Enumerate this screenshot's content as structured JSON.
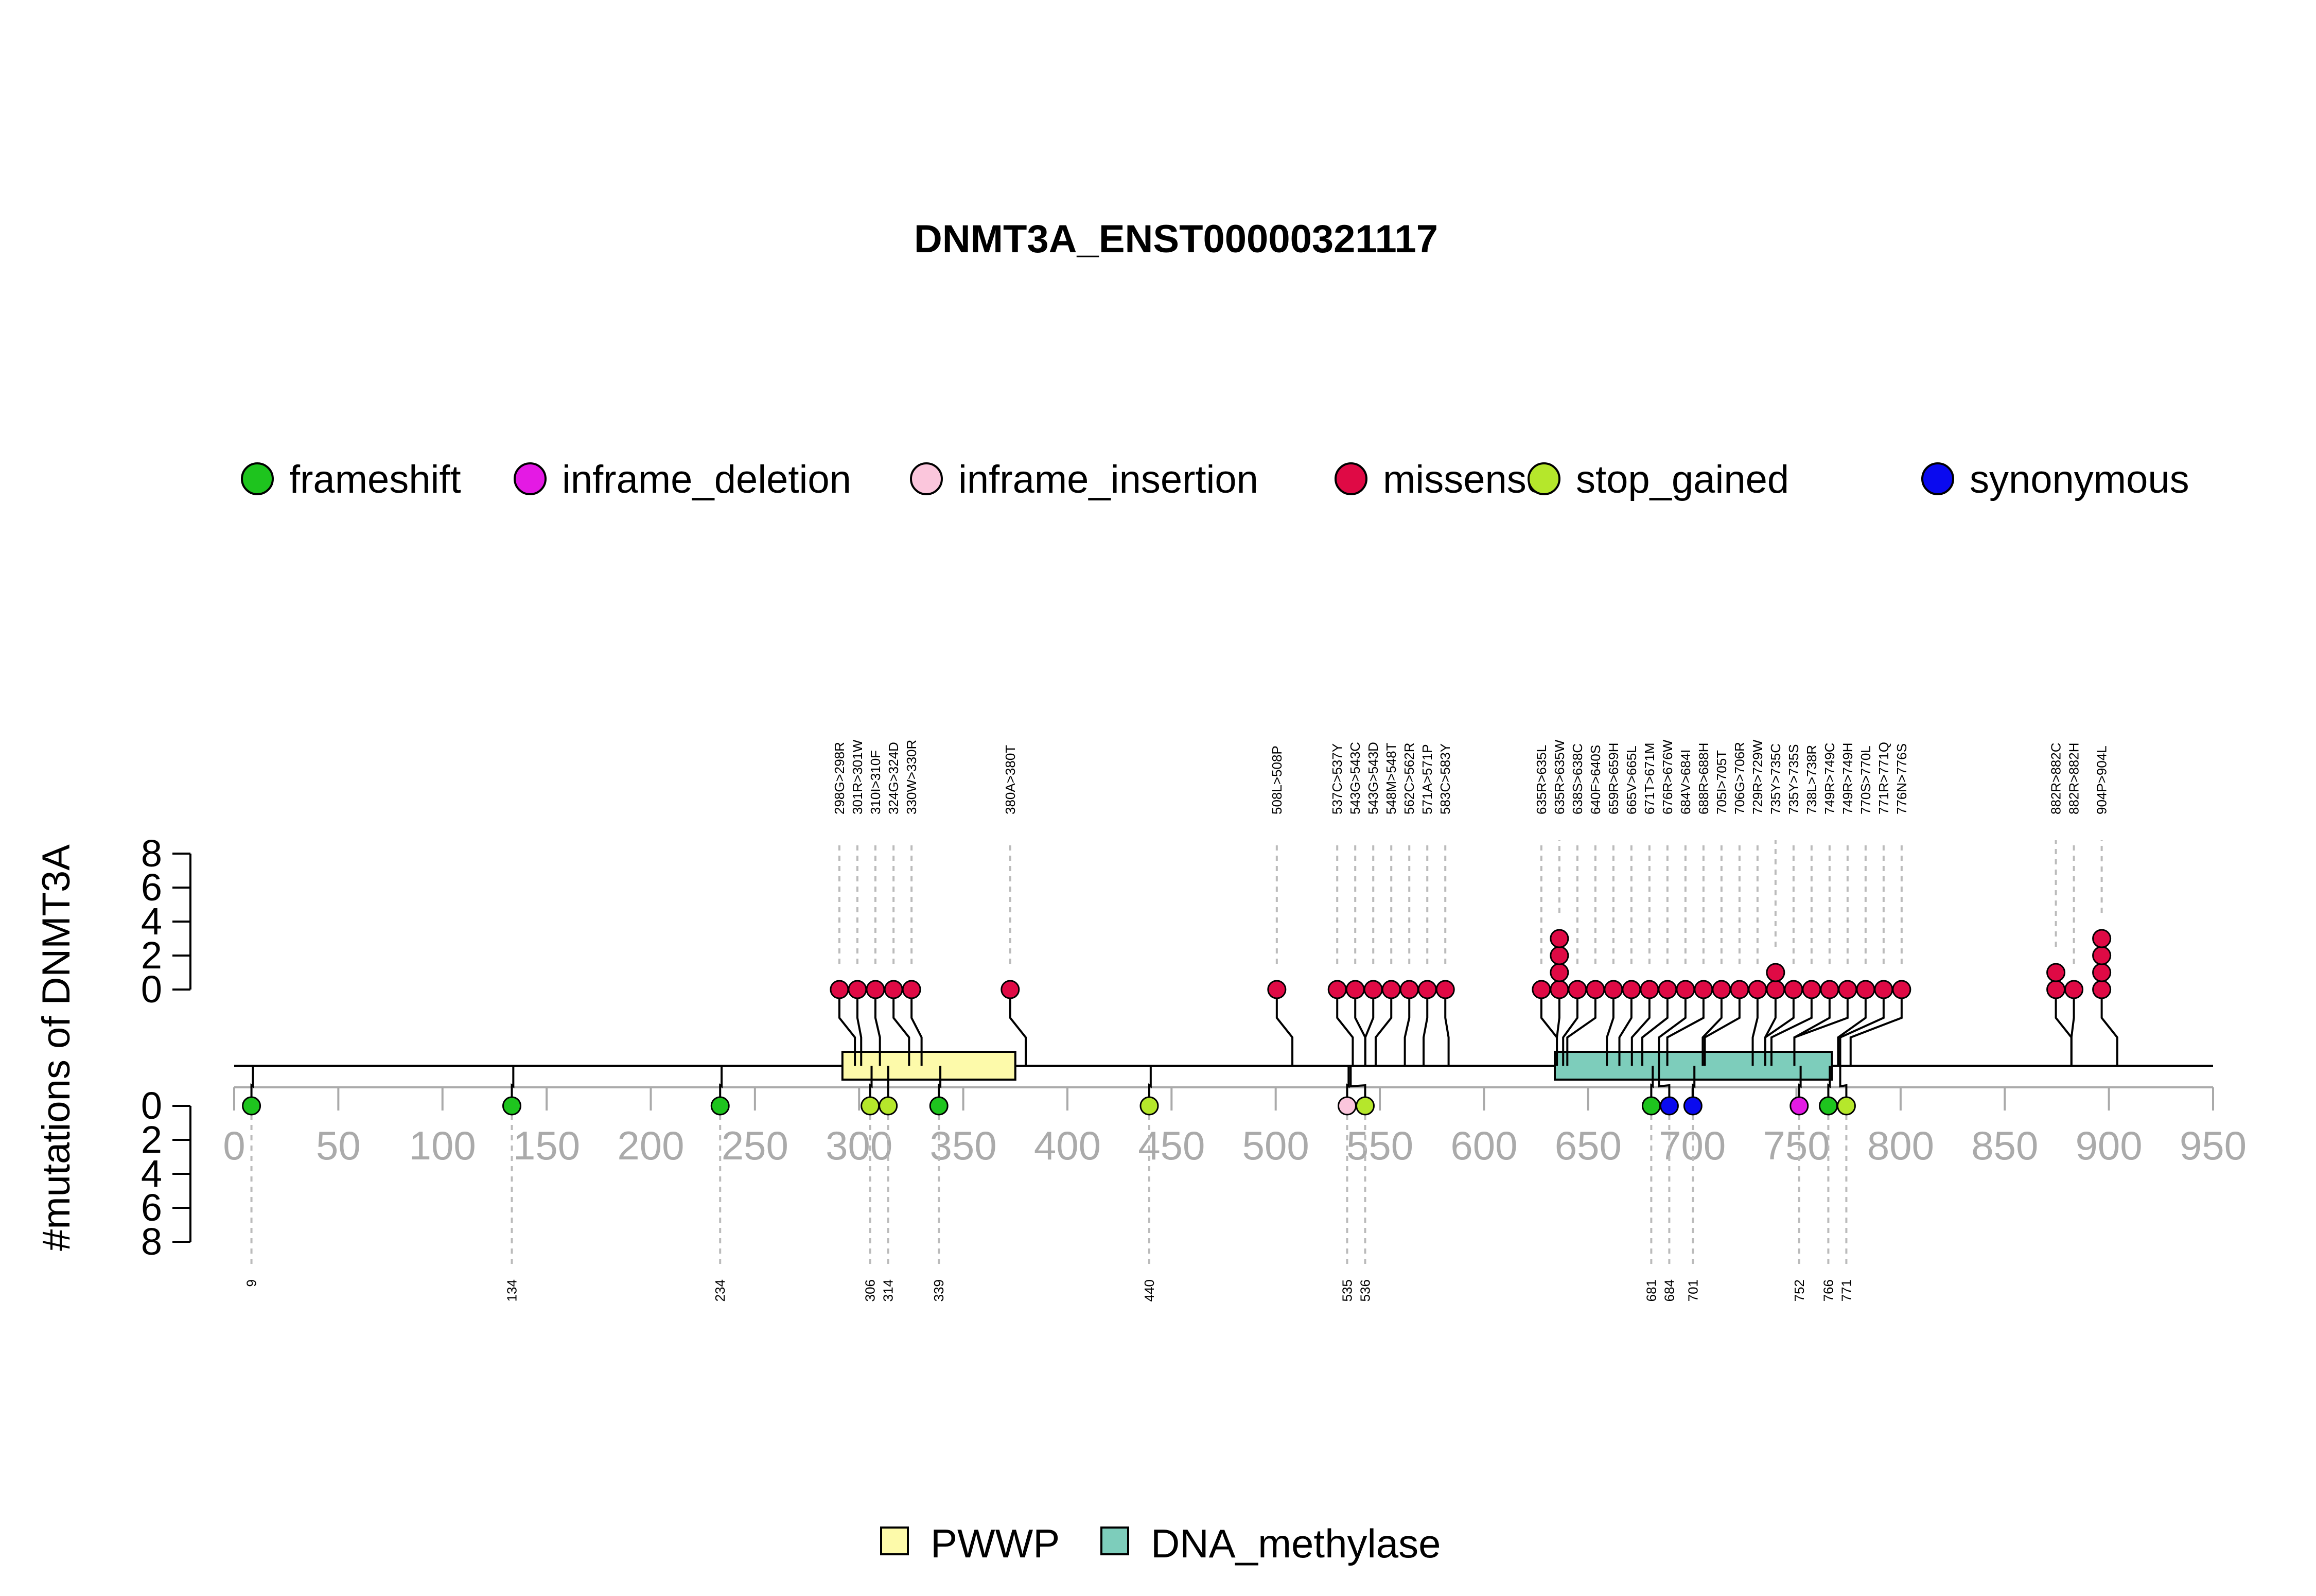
{
  "chart_data": {
    "type": "lollipop",
    "title": "DNMT3A_ENST00000321117",
    "ylabel": "#mutations of DNMT3A",
    "xlim": [
      0,
      950
    ],
    "x_ticks": [
      0,
      50,
      100,
      150,
      200,
      250,
      300,
      350,
      400,
      450,
      500,
      550,
      600,
      650,
      700,
      750,
      800,
      850,
      900,
      950
    ],
    "y_ticks": [
      0,
      2,
      4,
      6,
      8
    ],
    "ylim": [
      0,
      8
    ],
    "colors": {
      "frameshift": "#1ec41e",
      "inframe_deletion": "#e41ae4",
      "inframe_insertion": "#fbc6dc",
      "missense": "#df0a45",
      "stop_gained": "#b5e72b",
      "synonymous": "#0a0aef"
    },
    "legend": [
      {
        "label": "frameshift",
        "color": "#1ec41e"
      },
      {
        "label": "inframe_deletion",
        "color": "#e41ae4"
      },
      {
        "label": "inframe_insertion",
        "color": "#fbc6dc"
      },
      {
        "label": "missense",
        "color": "#df0a45"
      },
      {
        "label": "stop_gained",
        "color": "#b5e72b"
      },
      {
        "label": "synonymous",
        "color": "#0a0aef"
      }
    ],
    "domains": [
      {
        "name": "PWWP",
        "start": 292,
        "end": 375,
        "color": "#fdfaaa"
      },
      {
        "name": "DNA_methylase",
        "start": 634,
        "end": 767,
        "color": "#7dcdbb"
      }
    ],
    "top_mutations": [
      {
        "label": "298G>298R",
        "pos": 298,
        "count": 1,
        "type": "missense"
      },
      {
        "label": "301R>301W",
        "pos": 301,
        "count": 1,
        "type": "missense"
      },
      {
        "label": "310I>310F",
        "pos": 310,
        "count": 1,
        "type": "missense"
      },
      {
        "label": "324G>324D",
        "pos": 324,
        "count": 1,
        "type": "missense"
      },
      {
        "label": "330W>330R",
        "pos": 330,
        "count": 1,
        "type": "missense"
      },
      {
        "label": "380A>380T",
        "pos": 380,
        "count": 1,
        "type": "missense"
      },
      {
        "label": "508L>508P",
        "pos": 508,
        "count": 1,
        "type": "missense"
      },
      {
        "label": "537C>537Y",
        "pos": 537,
        "count": 1,
        "type": "missense"
      },
      {
        "label": "543G>543C",
        "pos": 543,
        "count": 1,
        "type": "missense"
      },
      {
        "label": "543G>543D",
        "pos": 543,
        "count": 1,
        "type": "missense"
      },
      {
        "label": "548M>548T",
        "pos": 548,
        "count": 1,
        "type": "missense"
      },
      {
        "label": "562C>562R",
        "pos": 562,
        "count": 1,
        "type": "missense"
      },
      {
        "label": "571A>571P",
        "pos": 571,
        "count": 1,
        "type": "missense"
      },
      {
        "label": "583C>583Y",
        "pos": 583,
        "count": 1,
        "type": "missense"
      },
      {
        "label": "635R>635L",
        "pos": 635,
        "count": 1,
        "type": "missense"
      },
      {
        "label": "635R>635W",
        "pos": 635,
        "count": 4,
        "type": "missense"
      },
      {
        "label": "638S>638C",
        "pos": 638,
        "count": 1,
        "type": "missense"
      },
      {
        "label": "640F>640S",
        "pos": 640,
        "count": 1,
        "type": "missense"
      },
      {
        "label": "659R>659H",
        "pos": 659,
        "count": 1,
        "type": "missense"
      },
      {
        "label": "665V>665L",
        "pos": 665,
        "count": 1,
        "type": "missense"
      },
      {
        "label": "671T>671M",
        "pos": 671,
        "count": 1,
        "type": "missense"
      },
      {
        "label": "676R>676W",
        "pos": 676,
        "count": 1,
        "type": "missense"
      },
      {
        "label": "684V>684I",
        "pos": 684,
        "count": 1,
        "type": "missense"
      },
      {
        "label": "688R>688H",
        "pos": 688,
        "count": 1,
        "type": "missense"
      },
      {
        "label": "705I>705T",
        "pos": 705,
        "count": 1,
        "type": "missense"
      },
      {
        "label": "706G>706R",
        "pos": 706,
        "count": 1,
        "type": "missense"
      },
      {
        "label": "729R>729W",
        "pos": 729,
        "count": 1,
        "type": "missense"
      },
      {
        "label": "735Y>735C",
        "pos": 735,
        "count": 2,
        "type": "missense"
      },
      {
        "label": "735Y>735S",
        "pos": 735,
        "count": 1,
        "type": "missense"
      },
      {
        "label": "738L>738R",
        "pos": 738,
        "count": 1,
        "type": "missense"
      },
      {
        "label": "749R>749C",
        "pos": 749,
        "count": 1,
        "type": "missense"
      },
      {
        "label": "749R>749H",
        "pos": 749,
        "count": 1,
        "type": "missense"
      },
      {
        "label": "770S>770L",
        "pos": 770,
        "count": 1,
        "type": "missense"
      },
      {
        "label": "771R>771Q",
        "pos": 771,
        "count": 1,
        "type": "missense"
      },
      {
        "label": "776N>776S",
        "pos": 776,
        "count": 1,
        "type": "missense"
      },
      {
        "label": "882R>882C",
        "pos": 882,
        "count": 2,
        "type": "missense"
      },
      {
        "label": "882R>882H",
        "pos": 882,
        "count": 1,
        "type": "missense"
      },
      {
        "label": "904P>904L",
        "pos": 904,
        "count": 4,
        "type": "missense"
      }
    ],
    "bottom_mutations": [
      {
        "label": "9",
        "pos": 9,
        "count": 1,
        "type": "frameshift"
      },
      {
        "label": "134",
        "pos": 134,
        "count": 1,
        "type": "frameshift"
      },
      {
        "label": "234",
        "pos": 234,
        "count": 1,
        "type": "frameshift"
      },
      {
        "label": "306",
        "pos": 306,
        "count": 1,
        "type": "stop_gained"
      },
      {
        "label": "314",
        "pos": 314,
        "count": 1,
        "type": "stop_gained"
      },
      {
        "label": "339",
        "pos": 339,
        "count": 1,
        "type": "frameshift"
      },
      {
        "label": "440",
        "pos": 440,
        "count": 1,
        "type": "stop_gained"
      },
      {
        "label": "535",
        "pos": 535,
        "count": 1,
        "type": "inframe_insertion"
      },
      {
        "label": "536",
        "pos": 536,
        "count": 1,
        "type": "stop_gained"
      },
      {
        "label": "681",
        "pos": 681,
        "count": 1,
        "type": "frameshift"
      },
      {
        "label": "684",
        "pos": 684,
        "count": 1,
        "type": "synonymous"
      },
      {
        "label": "701",
        "pos": 701,
        "count": 1,
        "type": "synonymous"
      },
      {
        "label": "752",
        "pos": 752,
        "count": 1,
        "type": "inframe_deletion"
      },
      {
        "label": "766",
        "pos": 766,
        "count": 1,
        "type": "frameshift"
      },
      {
        "label": "771",
        "pos": 771,
        "count": 1,
        "type": "stop_gained"
      }
    ]
  }
}
